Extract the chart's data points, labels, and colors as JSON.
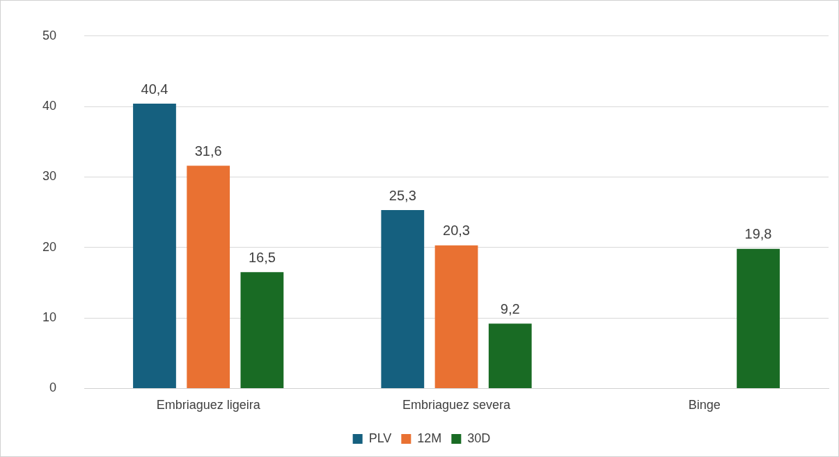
{
  "chart_data": {
    "type": "bar",
    "categories": [
      "Embriaguez ligeira",
      "Embriaguez severa",
      "Binge"
    ],
    "series": [
      {
        "name": "PLV",
        "color": "#15607f",
        "values": [
          40.4,
          25.3,
          null
        ],
        "value_labels": [
          "40,4",
          "25,3",
          null
        ]
      },
      {
        "name": "12M",
        "color": "#e97132",
        "values": [
          31.6,
          20.3,
          null
        ],
        "value_labels": [
          "31,6",
          "20,3",
          null
        ]
      },
      {
        "name": "30D",
        "color": "#196b24",
        "values": [
          16.5,
          9.2,
          19.8
        ],
        "value_labels": [
          "16,5",
          "9,2",
          "19,8"
        ]
      }
    ],
    "ylim": [
      0,
      50
    ],
    "yticks": [
      0,
      10,
      20,
      30,
      40,
      50
    ],
    "grid": "y",
    "legend": "bottom"
  }
}
